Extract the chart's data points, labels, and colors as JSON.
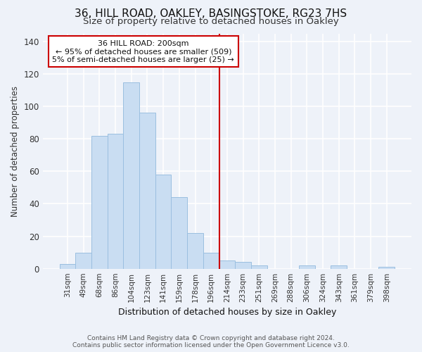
{
  "title": "36, HILL ROAD, OAKLEY, BASINGSTOKE, RG23 7HS",
  "subtitle": "Size of property relative to detached houses in Oakley",
  "xlabel": "Distribution of detached houses by size in Oakley",
  "ylabel": "Number of detached properties",
  "categories": [
    "31sqm",
    "49sqm",
    "68sqm",
    "86sqm",
    "104sqm",
    "123sqm",
    "141sqm",
    "159sqm",
    "178sqm",
    "196sqm",
    "214sqm",
    "233sqm",
    "251sqm",
    "269sqm",
    "288sqm",
    "306sqm",
    "324sqm",
    "343sqm",
    "361sqm",
    "379sqm",
    "398sqm"
  ],
  "values": [
    3,
    10,
    82,
    83,
    115,
    96,
    58,
    44,
    22,
    10,
    5,
    4,
    2,
    0,
    0,
    2,
    0,
    2,
    0,
    0,
    1
  ],
  "bar_color": "#c9ddf2",
  "bar_edge_color": "#9bbfe0",
  "vline_index": 9,
  "vline_color": "#cc0000",
  "annotation_text": "36 HILL ROAD: 200sqm\n← 95% of detached houses are smaller (509)\n5% of semi-detached houses are larger (25) →",
  "annotation_box_color": "#ffffff",
  "annotation_box_edge": "#cc0000",
  "ylim": [
    0,
    145
  ],
  "yticks": [
    0,
    20,
    40,
    60,
    80,
    100,
    120,
    140
  ],
  "footer1": "Contains HM Land Registry data © Crown copyright and database right 2024.",
  "footer2": "Contains public sector information licensed under the Open Government Licence v3.0.",
  "background_color": "#eef2f9",
  "grid_color": "#ffffff",
  "title_fontsize": 11,
  "subtitle_fontsize": 9.5
}
